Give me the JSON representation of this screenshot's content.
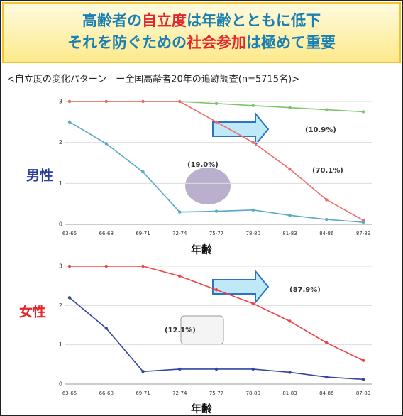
{
  "header": {
    "color": "#1a7fb3",
    "lines": [
      [
        {
          "text": "高齢者の"
        },
        {
          "text": "自立度",
          "color": "#e3262c"
        },
        {
          "text": "は年齢とともに低下"
        }
      ],
      [
        {
          "text": "それを防ぐための"
        },
        {
          "text": "社会参加",
          "color": "#e3262c"
        },
        {
          "text": "は極めて重要"
        }
      ]
    ]
  },
  "subtitle": "<自立度の変化パターン　ー全国高齢者20年の追跡調査(n=5715名)>",
  "chart_data": [
    {
      "type": "line",
      "label": "男性",
      "label_color": "#2a3d9a",
      "xlabel": "年齢",
      "categories": [
        "63-65",
        "66-68",
        "69-71",
        "72-74",
        "75-77",
        "78-80",
        "81-83",
        "84-86",
        "87-89"
      ],
      "ylim": [
        0,
        3
      ],
      "yticks": [
        0,
        1,
        2,
        3
      ],
      "grid": true,
      "series": [
        {
          "name": "(10.9%)",
          "color": "#7cc46c",
          "values": [
            3,
            3,
            3,
            3,
            2.95,
            2.9,
            2.85,
            2.8,
            2.75
          ]
        },
        {
          "name": "(70.1%)",
          "color": "#f06a6a",
          "values": [
            3,
            3,
            3,
            3,
            2.5,
            2.0,
            1.35,
            0.6,
            0.1
          ]
        },
        {
          "name": "(19.0%)",
          "color": "#5aa8c8",
          "values": [
            2.5,
            1.97,
            1.28,
            0.3,
            0.32,
            0.35,
            0.22,
            0.12,
            0.05
          ]
        }
      ]
    },
    {
      "type": "line",
      "label": "女性",
      "label_color": "#e3262c",
      "xlabel": "年齢",
      "categories": [
        "63-65",
        "66-68",
        "69-71",
        "72-74",
        "75-77",
        "78-80",
        "81-83",
        "84-86",
        "87-89"
      ],
      "ylim": [
        0,
        3
      ],
      "yticks": [
        0,
        1,
        2,
        3
      ],
      "grid": true,
      "series": [
        {
          "name": "(87.9%)",
          "color": "#ec4444",
          "values": [
            3,
            3,
            3,
            2.75,
            2.4,
            2.05,
            1.6,
            1.05,
            0.6
          ]
        },
        {
          "name": "(12.1%)",
          "color": "#34479e",
          "values": [
            2.2,
            1.42,
            0.32,
            0.38,
            0.38,
            0.38,
            0.3,
            0.18,
            0.12
          ]
        }
      ]
    }
  ]
}
